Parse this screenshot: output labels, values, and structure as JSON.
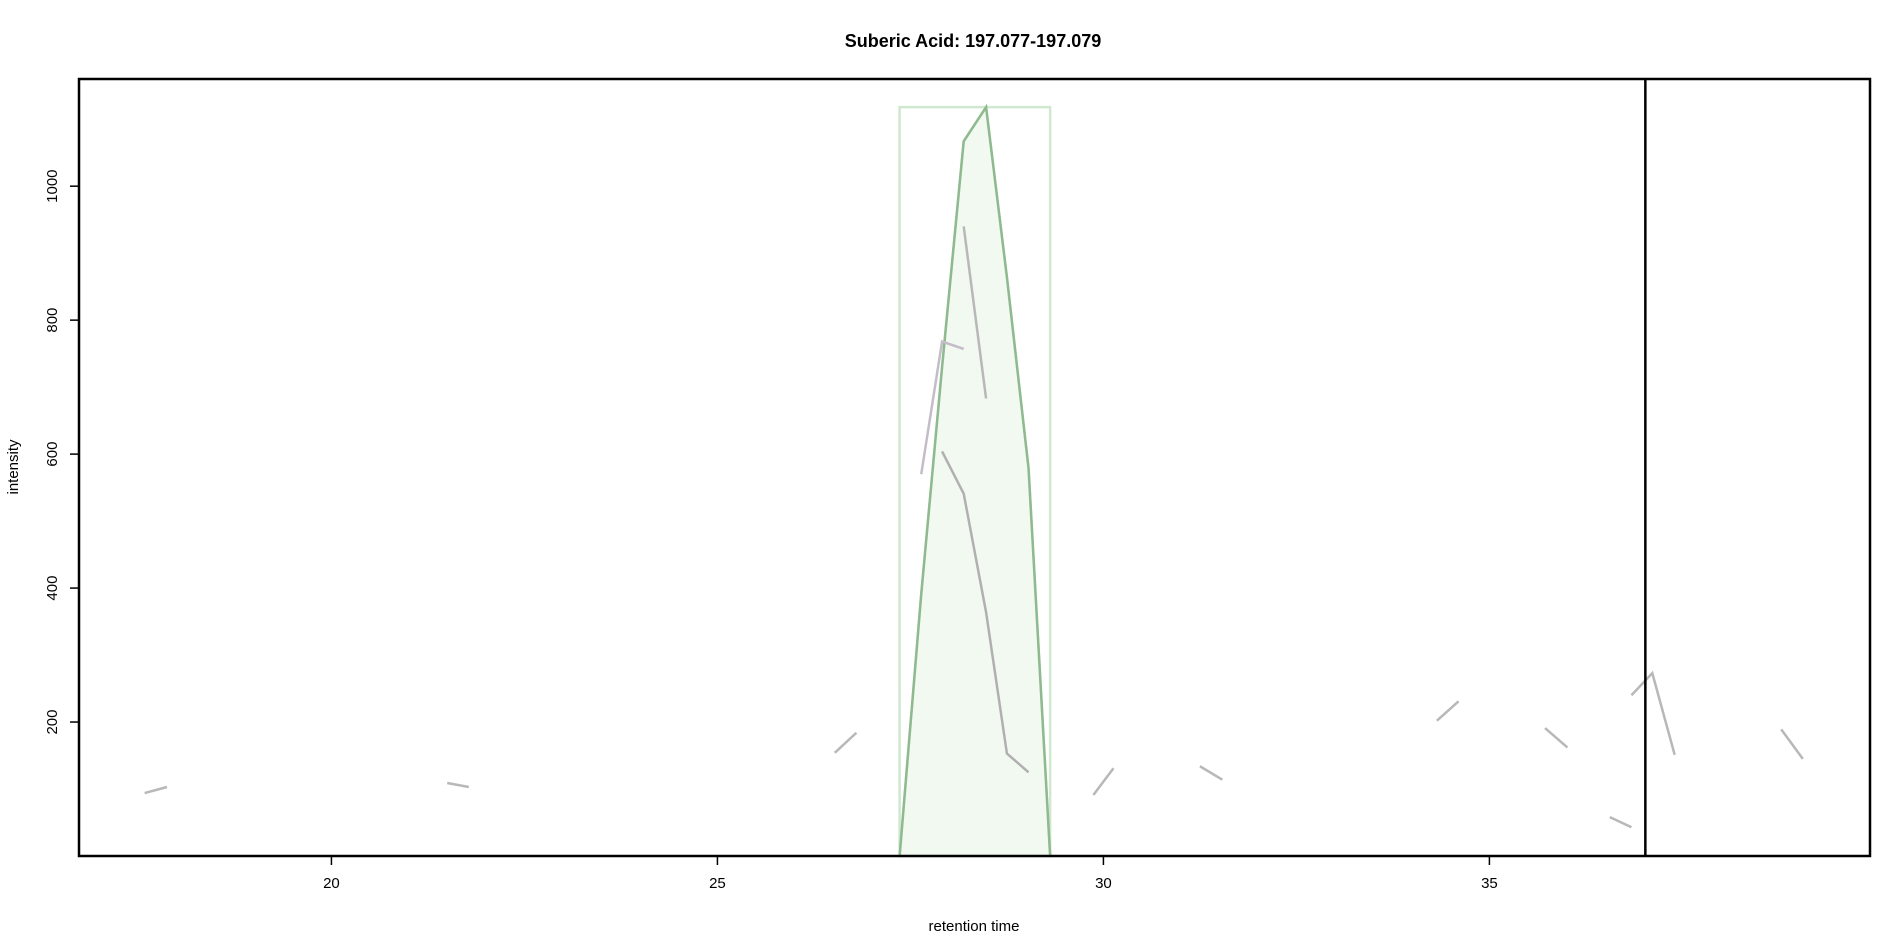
{
  "chart_data": {
    "type": "line",
    "title": "Suberic Acid: 197.077-197.079",
    "xlabel": "retention time",
    "ylabel": "intensity",
    "xlim": [
      16.73,
      39.93
    ],
    "ylim": [
      0,
      1160
    ],
    "xticks": [
      20,
      25,
      30,
      35
    ],
    "yticks": [
      200,
      400,
      600,
      800,
      1000
    ],
    "vline": 37.02,
    "peak": {
      "xmin": 27.36,
      "xmax": 29.31,
      "ymax": 1118,
      "color": "#cfe8cf",
      "fill": "#f1f9f1"
    },
    "series": [
      {
        "color": "#8fb98f",
        "x": [
          27.36,
          27.64,
          27.91,
          28.19,
          28.48,
          28.75,
          29.03,
          29.31
        ],
        "values": [
          0,
          391,
          730,
          1067,
          1118,
          864,
          579,
          0
        ]
      },
      {
        "color": "#b8b8b8",
        "x": [
          17.58,
          17.87
        ],
        "values": [
          94,
          103
        ]
      },
      {
        "color": "#b8b8b8",
        "x": [
          21.5,
          21.78
        ],
        "values": [
          109,
          103
        ]
      },
      {
        "color": "#b8b8b8",
        "x": [
          26.52,
          26.8
        ],
        "values": [
          154,
          184
        ]
      },
      {
        "color": "#c4bcc8",
        "x": [
          27.64,
          27.91,
          28.19
        ],
        "values": [
          570,
          768,
          757
        ]
      },
      {
        "color": "#b8b8b8",
        "x": [
          28.19,
          28.48
        ],
        "values": [
          940,
          683
        ]
      },
      {
        "color": "#b0b0b0",
        "x": [
          27.91,
          28.19,
          28.48,
          28.75,
          29.03
        ],
        "values": [
          604,
          541,
          364,
          153,
          125
        ]
      },
      {
        "color": "#b8b8b8",
        "x": [
          29.87,
          30.13
        ],
        "values": [
          91,
          131
        ]
      },
      {
        "color": "#b8b8b8",
        "x": [
          31.25,
          31.54
        ],
        "values": [
          134,
          114
        ]
      },
      {
        "color": "#b8b8b8",
        "x": [
          34.32,
          34.6
        ],
        "values": [
          202,
          231
        ]
      },
      {
        "color": "#b8b8b8",
        "x": [
          35.72,
          36.01
        ],
        "values": [
          191,
          162
        ]
      },
      {
        "color": "#b8b8b8",
        "x": [
          36.56,
          36.84
        ],
        "values": [
          58,
          43
        ]
      },
      {
        "color": "#b8b8b8",
        "x": [
          36.84,
          37.11,
          37.4
        ],
        "values": [
          240,
          273,
          151
        ]
      },
      {
        "color": "#b8b8b8",
        "x": [
          38.78,
          39.06
        ],
        "values": [
          189,
          145
        ]
      }
    ]
  }
}
